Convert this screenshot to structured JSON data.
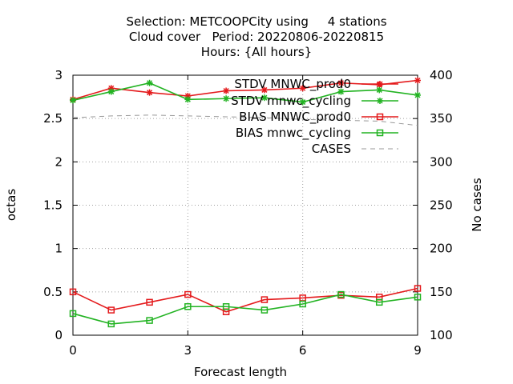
{
  "chart_data": {
    "type": "line",
    "title_lines": [
      "Selection: METCOOPCity using     4 stations",
      "Cloud cover   Period: 20220806-20220815",
      "Hours: {All hours}"
    ],
    "xlabel": "Forecast length",
    "ylabel": "octas",
    "y2label": "No cases",
    "xlim": [
      0,
      9
    ],
    "ylim": [
      0,
      3
    ],
    "y2lim": [
      100,
      400
    ],
    "xticks": [
      0,
      3,
      6,
      9
    ],
    "yticks": [
      0,
      0.5,
      1,
      1.5,
      2,
      2.5,
      3
    ],
    "yticklabels": [
      "0",
      "0.5",
      "1",
      "1.5",
      "2",
      "2.5",
      "3"
    ],
    "y2ticks": [
      100,
      150,
      200,
      250,
      300,
      350,
      400
    ],
    "grid": true,
    "legend_position": "top-right",
    "x": [
      0,
      1,
      2,
      3,
      4,
      5,
      6,
      7,
      8,
      9
    ],
    "series": [
      {
        "name": "STDV MNWC_prod0",
        "axis": "y",
        "color": "#e41a1c",
        "marker": "star",
        "values": [
          2.72,
          2.85,
          2.8,
          2.76,
          2.82,
          2.83,
          2.85,
          2.91,
          2.89,
          2.94
        ]
      },
      {
        "name": "STDV mnwc_cycling",
        "axis": "y",
        "color": "#22b322",
        "marker": "star",
        "values": [
          2.71,
          2.81,
          2.91,
          2.72,
          2.73,
          2.74,
          2.69,
          2.81,
          2.83,
          2.77
        ]
      },
      {
        "name": "BIAS MNWC_prod0",
        "axis": "y",
        "color": "#e41a1c",
        "marker": "square",
        "values": [
          0.5,
          0.29,
          0.38,
          0.47,
          0.27,
          0.41,
          0.43,
          0.46,
          0.44,
          0.54
        ]
      },
      {
        "name": "BIAS mnwc_cycling",
        "axis": "y",
        "color": "#22b322",
        "marker": "square",
        "values": [
          0.25,
          0.13,
          0.17,
          0.33,
          0.33,
          0.29,
          0.36,
          0.47,
          0.38,
          0.44
        ]
      },
      {
        "name": "CASES",
        "axis": "y2",
        "color": "#999999",
        "marker": "none",
        "dashed": true,
        "values": [
          351,
          353,
          354,
          353,
          352,
          351,
          349,
          348,
          347,
          342
        ]
      }
    ]
  }
}
